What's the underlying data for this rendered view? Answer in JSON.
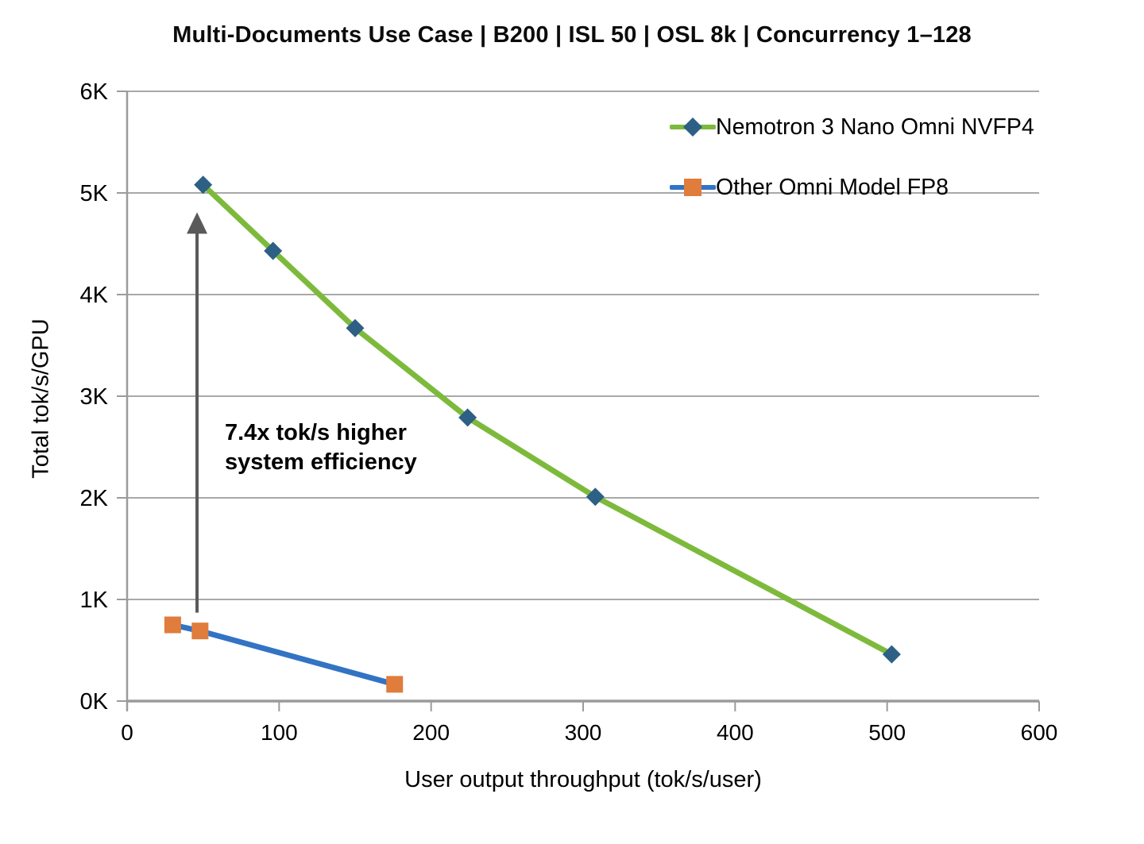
{
  "title": "Multi-Documents Use Case | B200 | ISL 50 | OSL 8k | Concurrency 1–128",
  "chart_data": {
    "type": "line",
    "title": "Multi-Documents Use Case | B200 | ISL 50 | OSL 8k | Concurrency 1–128",
    "xlabel": "User output throughput (tok/s/user)",
    "ylabel": "Total tok/s/GPU",
    "xlim": [
      0,
      600
    ],
    "ylim": [
      0,
      6000
    ],
    "x_ticks": [
      0,
      100,
      200,
      300,
      400,
      500,
      600
    ],
    "x_tick_labels": [
      "0",
      "100",
      "200",
      "300",
      "400",
      "500",
      "600"
    ],
    "y_ticks": [
      0,
      1000,
      2000,
      3000,
      4000,
      5000,
      6000
    ],
    "y_tick_labels": [
      "0K",
      "1K",
      "2K",
      "3K",
      "4K",
      "5K",
      "6K"
    ],
    "grid": "horizontal",
    "legend_position": "top-right-inside",
    "series": [
      {
        "name": "Nemotron 3 Nano Omni NVFP4",
        "color": "#7DBA3C",
        "marker": "diamond",
        "marker_color": "#2D6084",
        "points": [
          [
            50,
            5080
          ],
          [
            96,
            4430
          ],
          [
            150,
            3670
          ],
          [
            224,
            2790
          ],
          [
            308,
            2010
          ],
          [
            503,
            460
          ]
        ]
      },
      {
        "name": "Other Omni Model FP8",
        "color": "#3273C4",
        "marker": "square",
        "marker_color": "#E07C3C",
        "points": [
          [
            30,
            750
          ],
          [
            48,
            690
          ],
          [
            176,
            165
          ]
        ]
      }
    ],
    "annotation": {
      "line1": "7.4x tok/s higher",
      "line2": "system efficiency",
      "arrow": {
        "x": 46,
        "y_from": 870,
        "y_to": 4810,
        "color": "#5A5A5A"
      }
    },
    "colors": {
      "grid": "#A8A8A8",
      "axis": "#9B9B9B",
      "text": "#000000",
      "background": "#FFFFFF"
    }
  }
}
